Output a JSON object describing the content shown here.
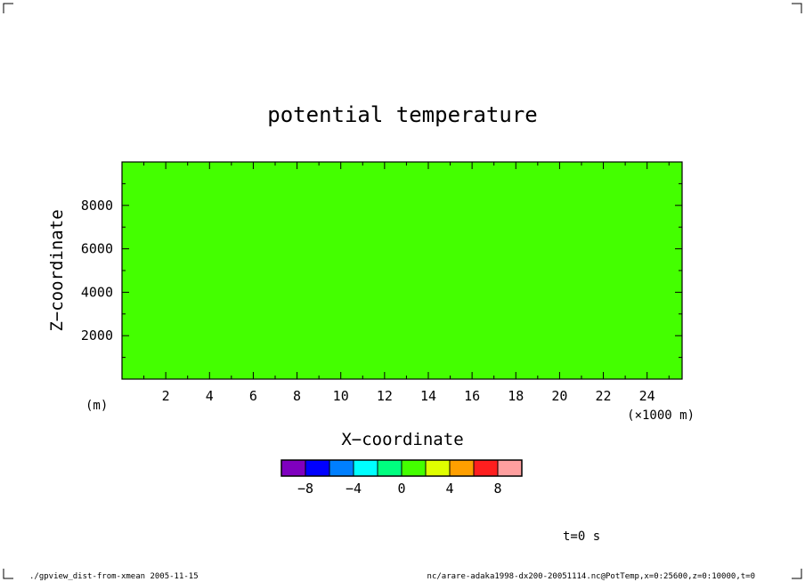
{
  "chart_data": {
    "type": "heatmap",
    "title": "potential temperature",
    "xlabel": "X−coordinate",
    "ylabel": "Z−coordinate",
    "x_units": "(×1000 m)",
    "y_units": "(m)",
    "xlim": [
      0,
      25.6
    ],
    "ylim": [
      0,
      10000
    ],
    "x_ticks": [
      2,
      4,
      6,
      8,
      10,
      12,
      14,
      16,
      18,
      20,
      22,
      24
    ],
    "x_tick_labels": [
      "2",
      "4",
      "6",
      "8",
      "10",
      "12",
      "14",
      "16",
      "18",
      "20",
      "22",
      "24"
    ],
    "y_ticks": [
      2000,
      4000,
      6000,
      8000
    ],
    "y_tick_labels": [
      "2000",
      "4000",
      "6000",
      "8000"
    ],
    "field_value": 0,
    "field_color": "#44ff00",
    "colorbar": {
      "levels": [
        -10,
        -8,
        -6,
        -4,
        -2,
        0,
        2,
        4,
        6,
        8,
        10
      ],
      "colors": [
        "#7f00bf",
        "#0000ff",
        "#007fff",
        "#00ffff",
        "#00ff7f",
        "#44ff00",
        "#dfff00",
        "#ff9f00",
        "#ff1f1f",
        "#ff9f9f"
      ],
      "tick_values": [
        -8,
        -4,
        0,
        4,
        8
      ],
      "tick_labels": [
        "−8",
        "−4",
        "0",
        "4",
        "8"
      ]
    },
    "time_label": "t=0 s"
  },
  "footer": {
    "left": "./gpview_dist-from-xmean  2005-11-15",
    "right": "nc/arare-adaka1998-dx200-20051114.nc@PotTemp,x=0:25600,z=0:10000,t=0"
  }
}
